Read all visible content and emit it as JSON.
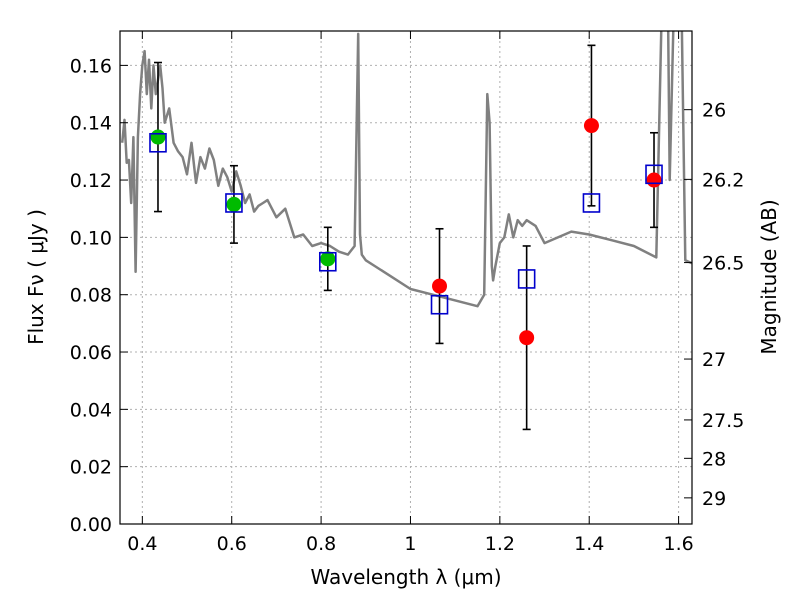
{
  "chart_data": {
    "type": "scatter",
    "title": "",
    "xlabel": "Wavelength  λ (μm)",
    "ylabel": "Flux  Fν  ( μJy )",
    "ylabel_right": "Magnitude (AB)",
    "xlim": [
      0.35,
      1.63
    ],
    "ylim": [
      0.0,
      0.172
    ],
    "grid": true,
    "x_ticks": [
      {
        "value": 0.4,
        "label": "0.4"
      },
      {
        "value": 0.6,
        "label": "0.6"
      },
      {
        "value": 0.8,
        "label": "0.8"
      },
      {
        "value": 1.0,
        "label": "1"
      },
      {
        "value": 1.2,
        "label": "1.2"
      },
      {
        "value": 1.4,
        "label": "1.4"
      },
      {
        "value": 1.6,
        "label": "1.6"
      }
    ],
    "y_ticks": [
      {
        "value": 0.0,
        "label": "0.00"
      },
      {
        "value": 0.02,
        "label": "0.02"
      },
      {
        "value": 0.04,
        "label": "0.04"
      },
      {
        "value": 0.06,
        "label": "0.06"
      },
      {
        "value": 0.08,
        "label": "0.08"
      },
      {
        "value": 0.1,
        "label": "0.10"
      },
      {
        "value": 0.12,
        "label": "0.12"
      },
      {
        "value": 0.14,
        "label": "0.14"
      },
      {
        "value": 0.16,
        "label": "0.16"
      }
    ],
    "right_ticks": [
      {
        "value": 26,
        "label": "26"
      },
      {
        "value": 26.2,
        "label": "26.2"
      },
      {
        "value": 26.5,
        "label": "26.5"
      },
      {
        "value": 27,
        "label": "27"
      },
      {
        "value": 27.5,
        "label": "27.5"
      },
      {
        "value": 28,
        "label": "28"
      },
      {
        "value": 29,
        "label": "29"
      }
    ],
    "colors": {
      "template": "#808080",
      "green": "#00bb00",
      "red": "#ff0000",
      "box": "#0000cc",
      "errorbar": "#000000",
      "grid": "#b0b0b0"
    },
    "template_spectrum": {
      "x": [
        0.355,
        0.36,
        0.365,
        0.37,
        0.375,
        0.38,
        0.385,
        0.39,
        0.395,
        0.4,
        0.405,
        0.41,
        0.415,
        0.42,
        0.425,
        0.43,
        0.435,
        0.44,
        0.445,
        0.45,
        0.46,
        0.47,
        0.48,
        0.49,
        0.5,
        0.51,
        0.52,
        0.53,
        0.54,
        0.55,
        0.56,
        0.57,
        0.58,
        0.59,
        0.6,
        0.61,
        0.62,
        0.63,
        0.64,
        0.65,
        0.66,
        0.67,
        0.68,
        0.7,
        0.72,
        0.74,
        0.76,
        0.78,
        0.8,
        0.82,
        0.84,
        0.86,
        0.875,
        0.883,
        0.887,
        0.891,
        0.9,
        0.92,
        0.95,
        1.0,
        1.05,
        1.1,
        1.15,
        1.165,
        1.172,
        1.177,
        1.182,
        1.185,
        1.19,
        1.2,
        1.21,
        1.22,
        1.23,
        1.24,
        1.25,
        1.26,
        1.28,
        1.3,
        1.33,
        1.36,
        1.4,
        1.45,
        1.5,
        1.55,
        1.565,
        1.57,
        1.575,
        1.58,
        1.6,
        1.615,
        1.63
      ],
      "y": [
        0.133,
        0.141,
        0.126,
        0.127,
        0.112,
        0.135,
        0.088,
        0.135,
        0.15,
        0.16,
        0.165,
        0.15,
        0.162,
        0.145,
        0.16,
        0.15,
        0.155,
        0.16,
        0.152,
        0.14,
        0.145,
        0.133,
        0.13,
        0.128,
        0.122,
        0.133,
        0.119,
        0.128,
        0.124,
        0.131,
        0.127,
        0.118,
        0.124,
        0.121,
        0.116,
        0.123,
        0.118,
        0.112,
        0.115,
        0.109,
        0.111,
        0.112,
        0.113,
        0.107,
        0.11,
        0.1,
        0.101,
        0.097,
        0.098,
        0.097,
        0.095,
        0.094,
        0.097,
        0.171,
        0.101,
        0.094,
        0.092,
        0.09,
        0.087,
        0.082,
        0.08,
        0.078,
        0.076,
        0.08,
        0.15,
        0.14,
        0.09,
        0.085,
        0.09,
        0.098,
        0.1,
        0.108,
        0.1,
        0.106,
        0.104,
        0.106,
        0.104,
        0.098,
        0.1,
        0.102,
        0.101,
        0.099,
        0.097,
        0.093,
        0.2,
        0.25,
        0.2,
        0.12,
        0.25,
        0.092,
        0.091
      ]
    },
    "series": [
      {
        "marker": "circle",
        "color": "green",
        "points": [
          {
            "x": 0.435,
            "y": 0.135,
            "yerr": 0.026
          },
          {
            "x": 0.605,
            "y": 0.1115,
            "yerr": 0.0135
          },
          {
            "x": 0.815,
            "y": 0.0925,
            "yerr": 0.011
          }
        ]
      },
      {
        "marker": "circle",
        "color": "red",
        "points": [
          {
            "x": 1.065,
            "y": 0.083,
            "yerr": 0.02
          },
          {
            "x": 1.26,
            "y": 0.065,
            "yerr": 0.032
          },
          {
            "x": 1.405,
            "y": 0.139,
            "yerr": 0.028
          },
          {
            "x": 1.545,
            "y": 0.12,
            "yerr": 0.0165
          }
        ]
      },
      {
        "marker": "open-square",
        "color": "box",
        "points": [
          {
            "x": 0.435,
            "y": 0.133
          },
          {
            "x": 0.605,
            "y": 0.112
          },
          {
            "x": 0.815,
            "y": 0.0915
          },
          {
            "x": 1.065,
            "y": 0.0765
          },
          {
            "x": 1.26,
            "y": 0.0855
          },
          {
            "x": 1.405,
            "y": 0.112
          },
          {
            "x": 1.545,
            "y": 0.122
          }
        ]
      }
    ]
  }
}
